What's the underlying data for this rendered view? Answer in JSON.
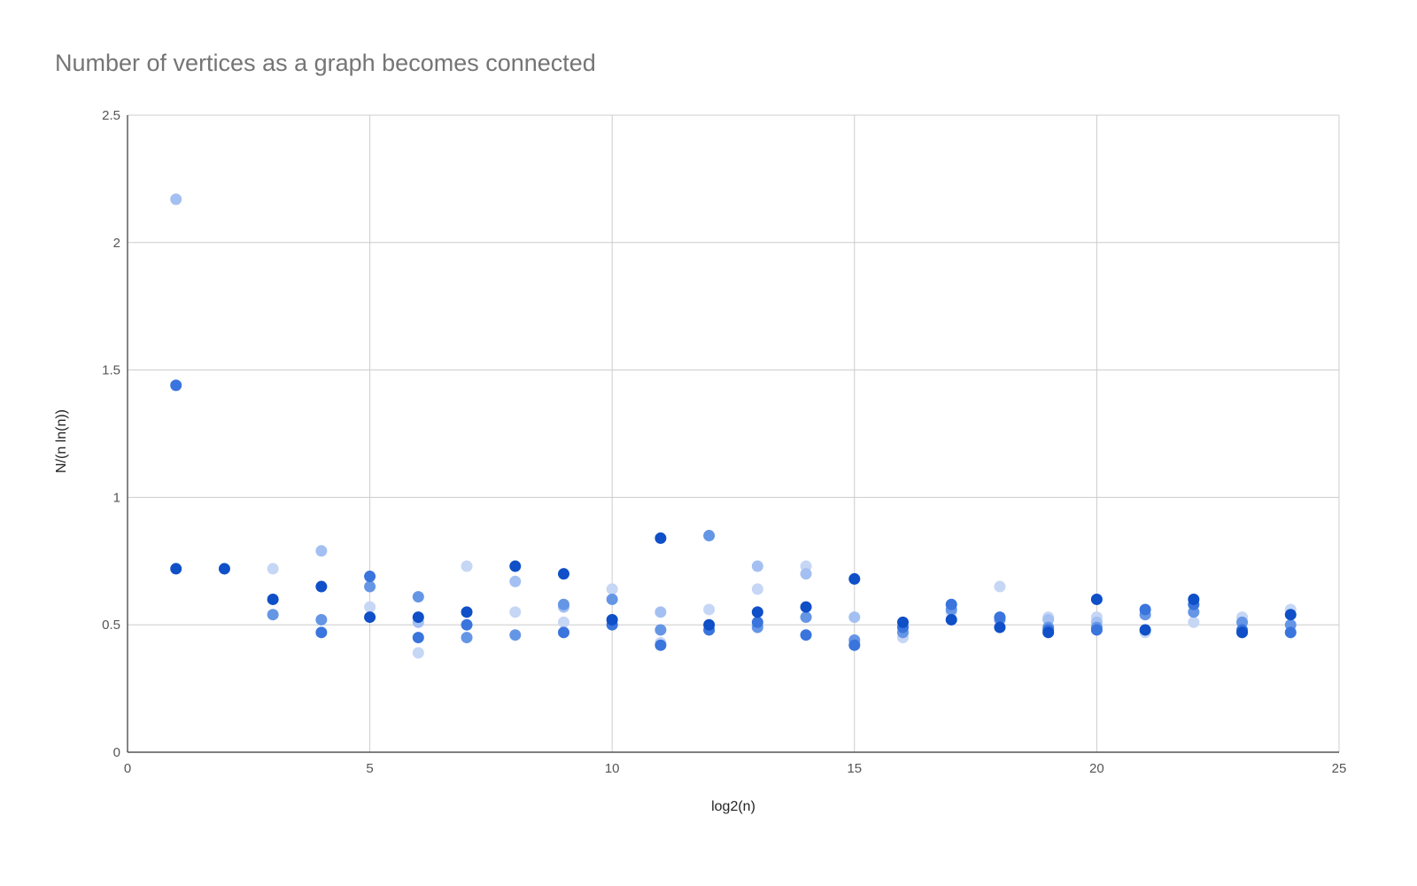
{
  "chart_data": {
    "type": "scatter",
    "title": "Number of vertices as a graph becomes connected",
    "xlabel": "log2(n)",
    "ylabel": "N/(n ln(n))",
    "xlim": [
      0,
      25
    ],
    "ylim": [
      0,
      2.5
    ],
    "x_ticks": [
      "0",
      "5",
      "10",
      "15",
      "20",
      "25"
    ],
    "y_ticks": [
      "0",
      "0.5",
      "1",
      "1.5",
      "2",
      "2.5"
    ],
    "grid": true,
    "legend": "none",
    "series": [
      {
        "color": "#c6d6f5",
        "points": [
          [
            3,
            0.72
          ],
          [
            5,
            0.57
          ],
          [
            6,
            0.39
          ],
          [
            7,
            0.73
          ],
          [
            8,
            0.55
          ],
          [
            9,
            0.51
          ],
          [
            10,
            0.64
          ],
          [
            11,
            0.43
          ],
          [
            12,
            0.56
          ],
          [
            13,
            0.64
          ],
          [
            14,
            0.73
          ],
          [
            15,
            0.43
          ],
          [
            16,
            0.45
          ],
          [
            17,
            0.55
          ],
          [
            18,
            0.65
          ],
          [
            19,
            0.53
          ],
          [
            20,
            0.53
          ],
          [
            21,
            0.47
          ],
          [
            22,
            0.51
          ],
          [
            23,
            0.53
          ],
          [
            24,
            0.56
          ]
        ]
      },
      {
        "color": "#a4c0f2",
        "points": [
          [
            1,
            2.17
          ],
          [
            4,
            0.79
          ],
          [
            6,
            0.51
          ],
          [
            8,
            0.67
          ],
          [
            9,
            0.57
          ],
          [
            11,
            0.55
          ],
          [
            13,
            0.73
          ],
          [
            14,
            0.7
          ],
          [
            15,
            0.53
          ],
          [
            19,
            0.52
          ],
          [
            20,
            0.51
          ]
        ]
      },
      {
        "color": "#6596e6",
        "points": [
          [
            3,
            0.54
          ],
          [
            4,
            0.52
          ],
          [
            5,
            0.65
          ],
          [
            6,
            0.61
          ],
          [
            7,
            0.45
          ],
          [
            8,
            0.46
          ],
          [
            9,
            0.58
          ],
          [
            10,
            0.6
          ],
          [
            11,
            0.48
          ],
          [
            12,
            0.85
          ],
          [
            13,
            0.49
          ],
          [
            14,
            0.53
          ],
          [
            15,
            0.44
          ],
          [
            16,
            0.47
          ],
          [
            17,
            0.56
          ],
          [
            18,
            0.52
          ],
          [
            19,
            0.49
          ],
          [
            20,
            0.49
          ],
          [
            21,
            0.54
          ],
          [
            22,
            0.55
          ],
          [
            23,
            0.51
          ],
          [
            24,
            0.5
          ]
        ]
      },
      {
        "color": "#3a74dd",
        "points": [
          [
            1,
            1.44
          ],
          [
            4,
            0.47
          ],
          [
            5,
            0.69
          ],
          [
            6,
            0.45
          ],
          [
            7,
            0.5
          ],
          [
            9,
            0.47
          ],
          [
            10,
            0.5
          ],
          [
            11,
            0.42
          ],
          [
            12,
            0.48
          ],
          [
            13,
            0.51
          ],
          [
            14,
            0.46
          ],
          [
            15,
            0.42
          ],
          [
            16,
            0.49
          ],
          [
            17,
            0.58
          ],
          [
            18,
            0.53
          ],
          [
            19,
            0.48
          ],
          [
            20,
            0.48
          ],
          [
            21,
            0.56
          ],
          [
            22,
            0.58
          ],
          [
            23,
            0.48
          ],
          [
            24,
            0.47
          ]
        ]
      },
      {
        "color": "#0f4fc7",
        "points": [
          [
            1,
            0.72
          ],
          [
            2,
            0.72
          ],
          [
            3,
            0.6
          ],
          [
            4,
            0.65
          ],
          [
            5,
            0.53
          ],
          [
            6,
            0.53
          ],
          [
            7,
            0.55
          ],
          [
            8,
            0.73
          ],
          [
            9,
            0.7
          ],
          [
            10,
            0.52
          ],
          [
            11,
            0.84
          ],
          [
            12,
            0.5
          ],
          [
            13,
            0.55
          ],
          [
            14,
            0.57
          ],
          [
            15,
            0.68
          ],
          [
            16,
            0.51
          ],
          [
            17,
            0.52
          ],
          [
            18,
            0.49
          ],
          [
            19,
            0.47
          ],
          [
            20,
            0.6
          ],
          [
            21,
            0.48
          ],
          [
            22,
            0.6
          ],
          [
            23,
            0.47
          ],
          [
            24,
            0.54
          ]
        ]
      }
    ]
  }
}
